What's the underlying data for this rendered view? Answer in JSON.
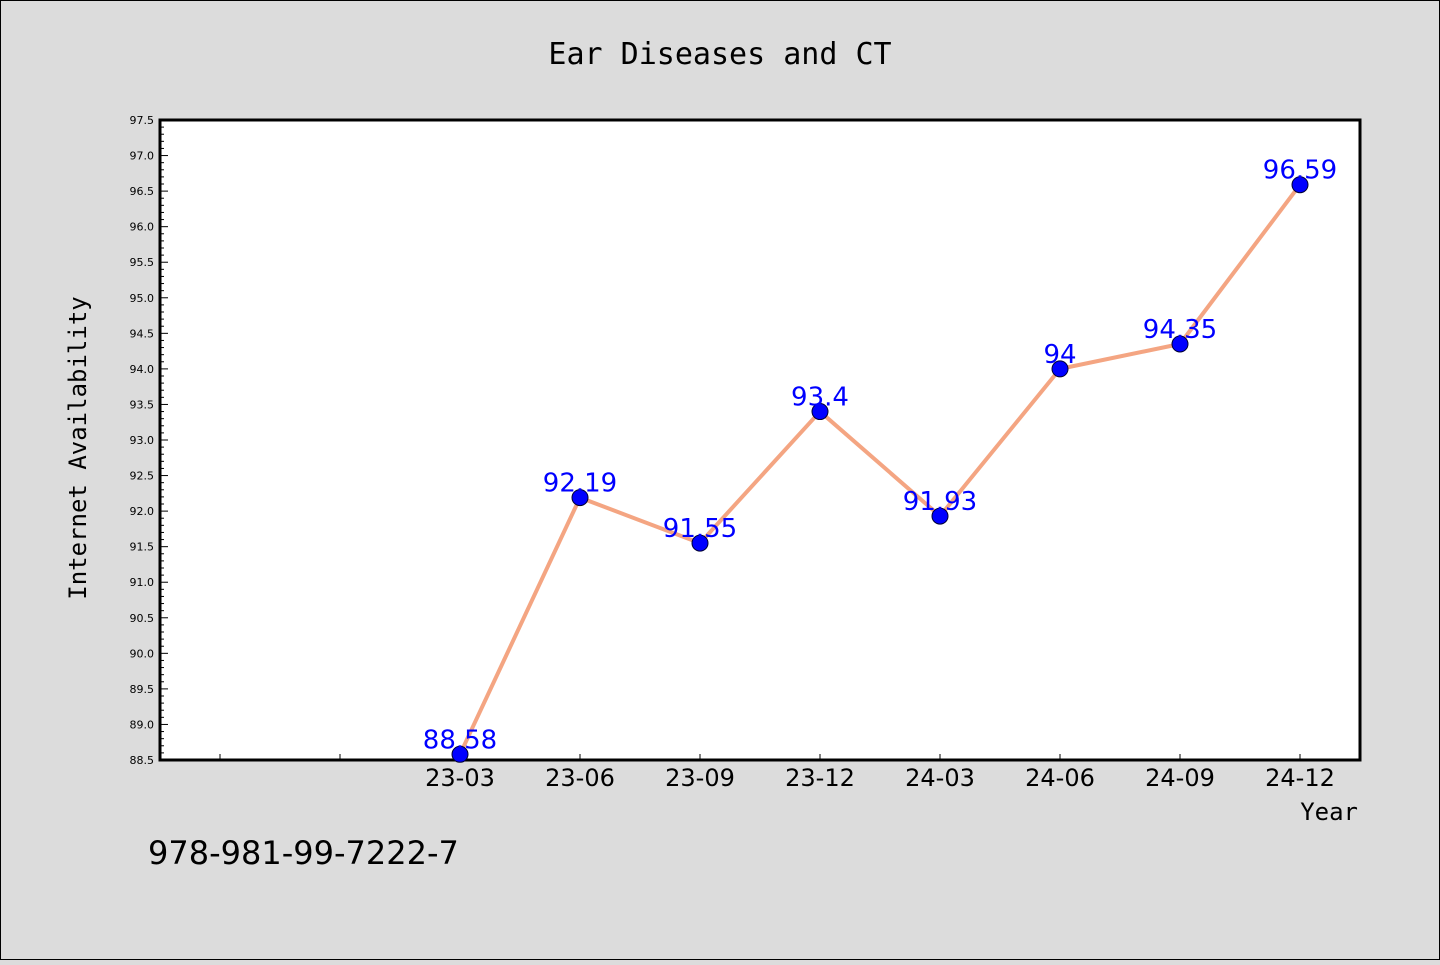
{
  "chart_data": {
    "type": "line",
    "title": "Ear Diseases and CT",
    "xlabel": "Year",
    "ylabel": "Internet Availability",
    "footnote": "978-981-99-7222-7",
    "categories": [
      "23-03",
      "23-06",
      "23-09",
      "23-12",
      "24-03",
      "24-06",
      "24-09",
      "24-12"
    ],
    "series": [
      {
        "values": [
          88.58,
          92.19,
          91.55,
          93.4,
          91.93,
          94,
          94.35,
          96.59
        ],
        "labels": [
          "88.58",
          "92.19",
          "91.55",
          "93.4",
          "91.93",
          "94",
          "94.35",
          "96.59"
        ]
      }
    ],
    "ylim": [
      88.5,
      97.5
    ],
    "yticks": [
      "88.5",
      "89.0",
      "89.5",
      "90.0",
      "90.5",
      "91.0",
      "91.5",
      "92.0",
      "92.5",
      "93.0",
      "93.5",
      "94.0",
      "94.5",
      "95.0",
      "95.5",
      "96.0",
      "96.5",
      "97.0",
      "97.5"
    ],
    "x_leading_empty_slots": 2,
    "grid": false,
    "colors": {
      "background": "#dcdcdc",
      "plot_background": "#ffffff",
      "line": "#f4a582",
      "marker": "#0000ff",
      "data_label": "#0000ff"
    }
  }
}
